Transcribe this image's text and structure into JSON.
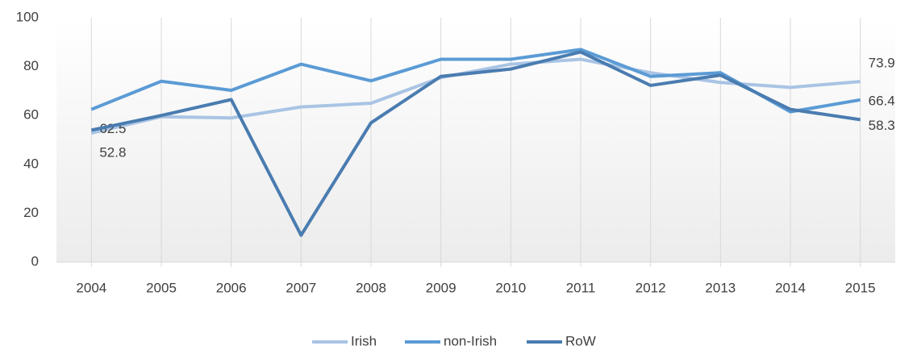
{
  "chart_data": {
    "type": "line",
    "categories": [
      "2004",
      "2005",
      "2006",
      "2007",
      "2008",
      "2009",
      "2010",
      "2011",
      "2012",
      "2013",
      "2014",
      "2015"
    ],
    "series": [
      {
        "name": "Irish",
        "color": "#a9c4e4",
        "values": [
          52.8,
          59.5,
          59,
          63.5,
          65,
          75.5,
          81,
          83,
          77.5,
          73.5,
          71.5,
          73.9
        ],
        "labeled": [
          0,
          11
        ]
      },
      {
        "name": "non-Irish",
        "color": "#5b9bd5",
        "values": [
          62.5,
          74,
          70.3,
          81,
          74.2,
          83,
          83,
          87,
          76,
          77.5,
          61.5,
          66.4
        ],
        "labeled": [
          0,
          11
        ]
      },
      {
        "name": "RoW",
        "color": "#4a7cb0",
        "values": [
          54,
          60,
          66.5,
          11,
          57,
          76,
          79,
          86,
          72.3,
          76.5,
          62.5,
          58.3
        ],
        "labeled": [
          11
        ]
      }
    ],
    "ylim": [
      0,
      100
    ],
    "yticks": [
      0,
      20,
      40,
      60,
      80,
      100
    ],
    "grid": "x",
    "legend": "bottom"
  }
}
